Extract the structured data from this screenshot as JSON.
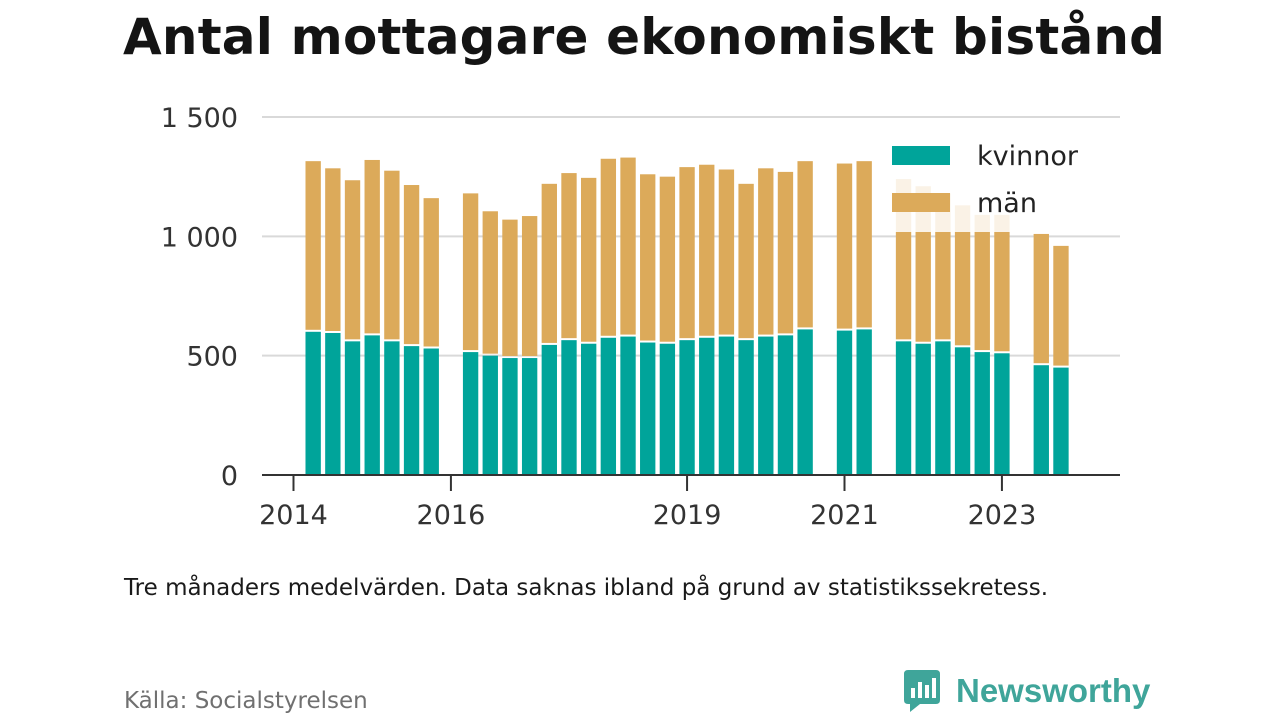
{
  "title": "Antal mottagare ekonomiskt bistånd",
  "note": "Tre månaders medelvärden. Data saknas ibland på grund av statistikssekretess.",
  "source": "Källa: Socialstyrelsen",
  "brand": {
    "name": "Newsworthy",
    "color": "#3fa59a",
    "icon": "newsworthy-logo-icon"
  },
  "chart_data": {
    "type": "bar",
    "stacked": true,
    "title": "Antal mottagare ekonomiskt bistånd",
    "ylim": [
      0,
      1500
    ],
    "yticks": [
      0,
      500,
      1000,
      1500
    ],
    "ytick_labels": [
      "0",
      "500",
      "1 000",
      "1 500"
    ],
    "xlim": [
      2013.6,
      2024.5
    ],
    "xticks": [
      2014,
      2016,
      2019,
      2021,
      2023
    ],
    "xtick_labels": [
      "2014",
      "2016",
      "2019",
      "2021",
      "2023"
    ],
    "grid": true,
    "legend_position": "top-right",
    "colors": {
      "kvinnor": "#00a49a",
      "män": "#dcaa5a"
    },
    "series": [
      {
        "name": "kvinnor",
        "values": [
          600,
          595,
          560,
          585,
          560,
          540,
          530,
          null,
          515,
          500,
          490,
          490,
          545,
          565,
          550,
          575,
          580,
          555,
          550,
          565,
          575,
          580,
          565,
          580,
          585,
          610,
          null,
          605,
          610,
          null,
          560,
          550,
          560,
          535,
          515,
          510,
          null,
          460,
          450
        ]
      },
      {
        "name": "män",
        "values": [
          715,
          690,
          675,
          735,
          715,
          675,
          630,
          null,
          665,
          605,
          580,
          595,
          675,
          700,
          695,
          750,
          750,
          705,
          700,
          725,
          725,
          700,
          655,
          705,
          685,
          705,
          null,
          700,
          705,
          null,
          680,
          660,
          620,
          595,
          575,
          580,
          null,
          550,
          510
        ]
      }
    ],
    "x": [
      2014.25,
      2014.5,
      2014.75,
      2015.0,
      2015.25,
      2015.5,
      2015.75,
      2016.0,
      2016.25,
      2016.5,
      2016.75,
      2017.0,
      2017.25,
      2017.5,
      2017.75,
      2018.0,
      2018.25,
      2018.5,
      2018.75,
      2019.0,
      2019.25,
      2019.5,
      2019.75,
      2020.0,
      2020.25,
      2020.5,
      2020.75,
      2021.0,
      2021.25,
      2021.5,
      2021.75,
      2022.0,
      2022.25,
      2022.5,
      2022.75,
      2023.0,
      2023.25,
      2023.5,
      2023.75
    ]
  }
}
